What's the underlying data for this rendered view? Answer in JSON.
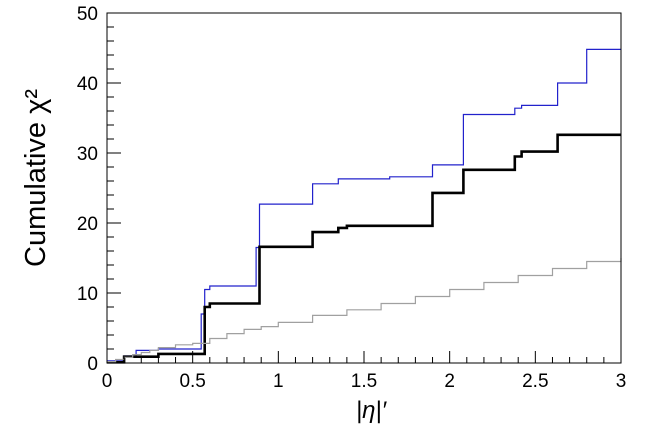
{
  "chart_data": {
    "type": "line",
    "title": "",
    "xlabel": "|η|′",
    "ylabel": "Cumulative χ²",
    "xlim": [
      0,
      3
    ],
    "ylim": [
      0,
      50
    ],
    "grid": false,
    "x_tick_labels": [
      "0",
      "0.5",
      "1",
      "1.5",
      "2",
      "2.5",
      "3"
    ],
    "x_tick_values": [
      0,
      0.5,
      1,
      1.5,
      2,
      2.5,
      3
    ],
    "y_tick_labels": [
      "0",
      "10",
      "20",
      "30",
      "40",
      "50"
    ],
    "y_tick_values": [
      0,
      10,
      20,
      30,
      40,
      50
    ],
    "series": [
      {
        "color": "#2222cc",
        "step": true,
        "x": [
          0,
          0.1,
          0.15,
          0.17,
          0.3,
          0.55,
          0.57,
          0.6,
          0.87,
          0.89,
          1.18,
          1.2,
          1.35,
          1.4,
          1.65,
          1.9,
          2.08,
          2.38,
          2.42,
          2.48,
          2.63,
          2.8,
          3.0
        ],
        "y": [
          0.3,
          1.0,
          1.0,
          1.8,
          2.0,
          7.0,
          10.5,
          11.0,
          16.5,
          22.7,
          22.7,
          25.6,
          26.3,
          26.3,
          26.6,
          28.3,
          35.5,
          36.4,
          36.8,
          36.8,
          40.0,
          44.8,
          44.8
        ]
      },
      {
        "color": "#000000",
        "step": true,
        "x": [
          0,
          0.1,
          0.3,
          0.55,
          0.57,
          0.6,
          0.87,
          0.89,
          1.18,
          1.2,
          1.35,
          1.4,
          1.65,
          1.9,
          2.08,
          2.38,
          2.42,
          2.63,
          3.0
        ],
        "y": [
          0.1,
          0.9,
          1.3,
          1.3,
          8.0,
          8.5,
          8.5,
          16.6,
          16.6,
          18.7,
          19.3,
          19.6,
          19.6,
          24.3,
          27.6,
          29.5,
          30.2,
          32.6,
          32.6
        ]
      },
      {
        "color": "#a0a0a0",
        "step": true,
        "x": [
          0,
          0.05,
          0.1,
          0.15,
          0.2,
          0.25,
          0.3,
          0.4,
          0.5,
          0.6,
          0.7,
          0.8,
          0.9,
          1.0,
          1.2,
          1.4,
          1.6,
          1.8,
          2.0,
          2.2,
          2.4,
          2.6,
          2.8,
          3.0
        ],
        "y": [
          0.2,
          0.5,
          0.8,
          1.2,
          1.5,
          1.8,
          2.2,
          2.6,
          2.8,
          3.5,
          4.2,
          4.8,
          5.2,
          5.8,
          6.8,
          7.6,
          8.5,
          9.5,
          10.5,
          11.5,
          12.5,
          13.5,
          14.5,
          15.0
        ]
      }
    ]
  }
}
